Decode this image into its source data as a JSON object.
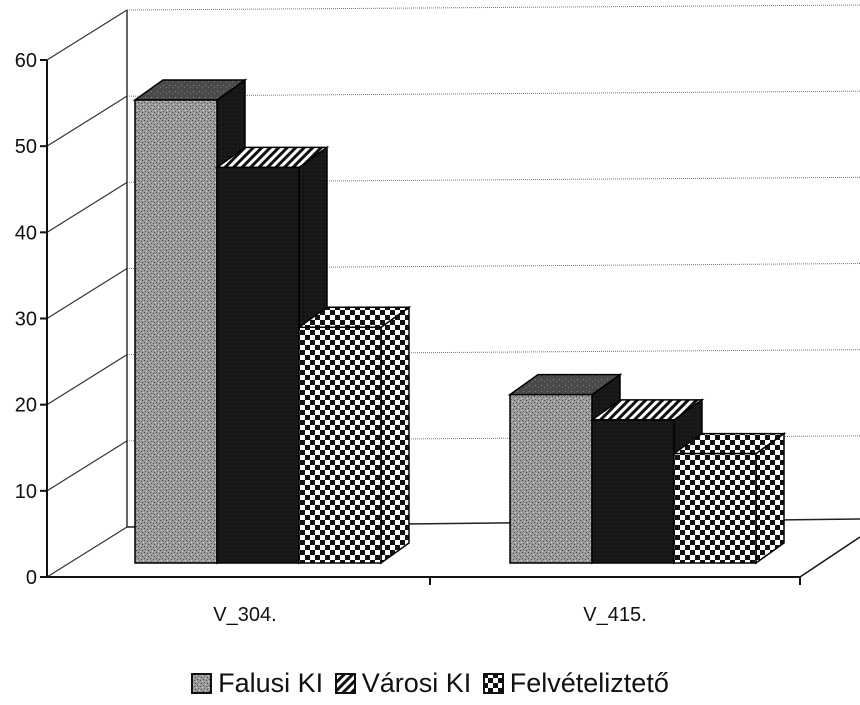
{
  "chart_data": {
    "type": "bar",
    "three_d": true,
    "categories": [
      "V_304.",
      "V_415."
    ],
    "series": [
      {
        "name": "Falusi KI",
        "values": [
          55,
          20
        ],
        "pattern": "speckled-gray"
      },
      {
        "name": "Városi KI",
        "values": [
          47,
          17
        ],
        "pattern": "solid-black-with-striped-top"
      },
      {
        "name": "Felvételiztető",
        "values": [
          28,
          13
        ],
        "pattern": "checkerboard"
      }
    ],
    "ylim": [
      0,
      60
    ],
    "yticks": [
      0,
      10,
      20,
      30,
      40,
      50,
      60
    ],
    "grid": true,
    "legend_position": "bottom",
    "colors": {
      "speckled": "#8f8f8f",
      "black": "#1a1a1a",
      "white": "#ffffff"
    }
  }
}
